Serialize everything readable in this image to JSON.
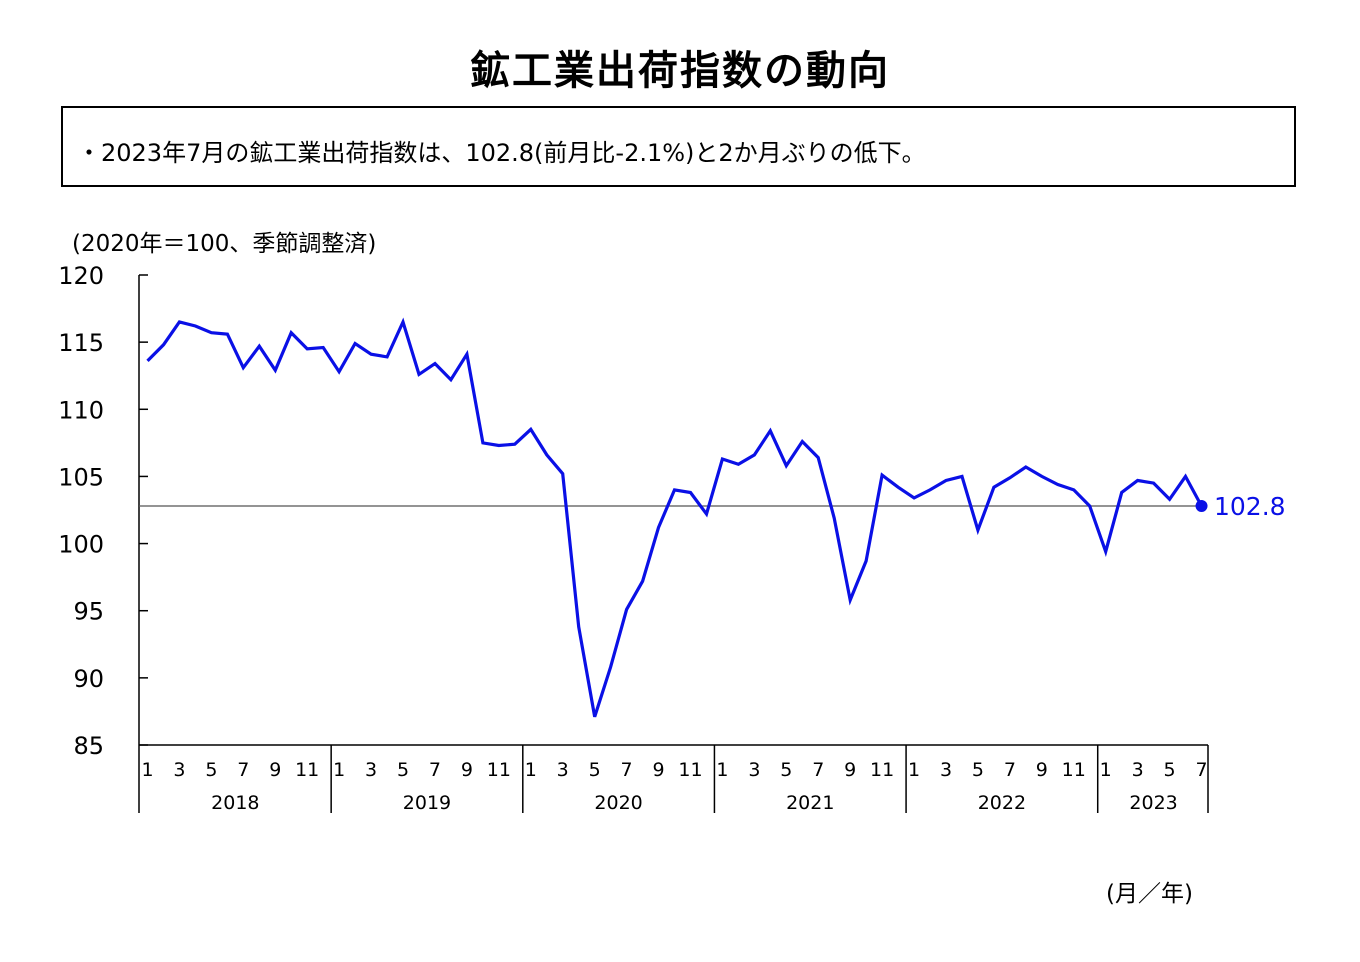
{
  "title": "鉱工業出荷指数の動向",
  "summary": "・2023年7月の鉱工業出荷指数は、102.8(前月比-2.1%)と2か月ぶりの低下。",
  "unit_note": "(2020年＝100、季節調整済)",
  "month_year_note": "(月／年)",
  "chart_data": {
    "type": "line",
    "line_color": "#0a10e6",
    "reference_line_value": 102.8,
    "ylim": [
      85,
      120
    ],
    "y_ticks": [
      "85",
      "90",
      "95",
      "100",
      "105",
      "110",
      "115",
      "120"
    ],
    "month_tick_labels": [
      "1",
      "3",
      "5",
      "7",
      "9",
      "11"
    ],
    "years": [
      "2018",
      "2019",
      "2020",
      "2021",
      "2022",
      "2023"
    ],
    "series": [
      {
        "values": [
          113.6,
          114.8,
          116.5,
          116.2,
          115.7,
          115.6,
          113.1,
          114.7,
          112.9,
          115.7,
          114.5,
          114.6,
          112.8,
          114.9,
          114.1,
          113.9,
          116.5,
          112.6,
          113.4,
          112.2,
          114.1,
          107.5,
          107.3,
          107.4,
          108.5,
          106.6,
          105.2,
          93.8,
          87.1,
          90.8,
          95.1,
          97.2,
          101.2,
          104.0,
          103.8,
          102.2,
          106.3,
          105.9,
          106.6,
          108.4,
          105.8,
          107.6,
          106.4,
          101.9,
          95.8,
          98.7,
          105.1,
          104.2,
          103.4,
          104.0,
          104.7,
          105.0,
          101.0,
          104.2,
          104.9,
          105.7,
          105.0,
          104.4,
          104.0,
          102.8,
          99.4,
          103.8,
          104.7,
          104.5,
          103.3,
          105.0,
          102.8
        ]
      }
    ],
    "last_value_label": "102.8"
  }
}
